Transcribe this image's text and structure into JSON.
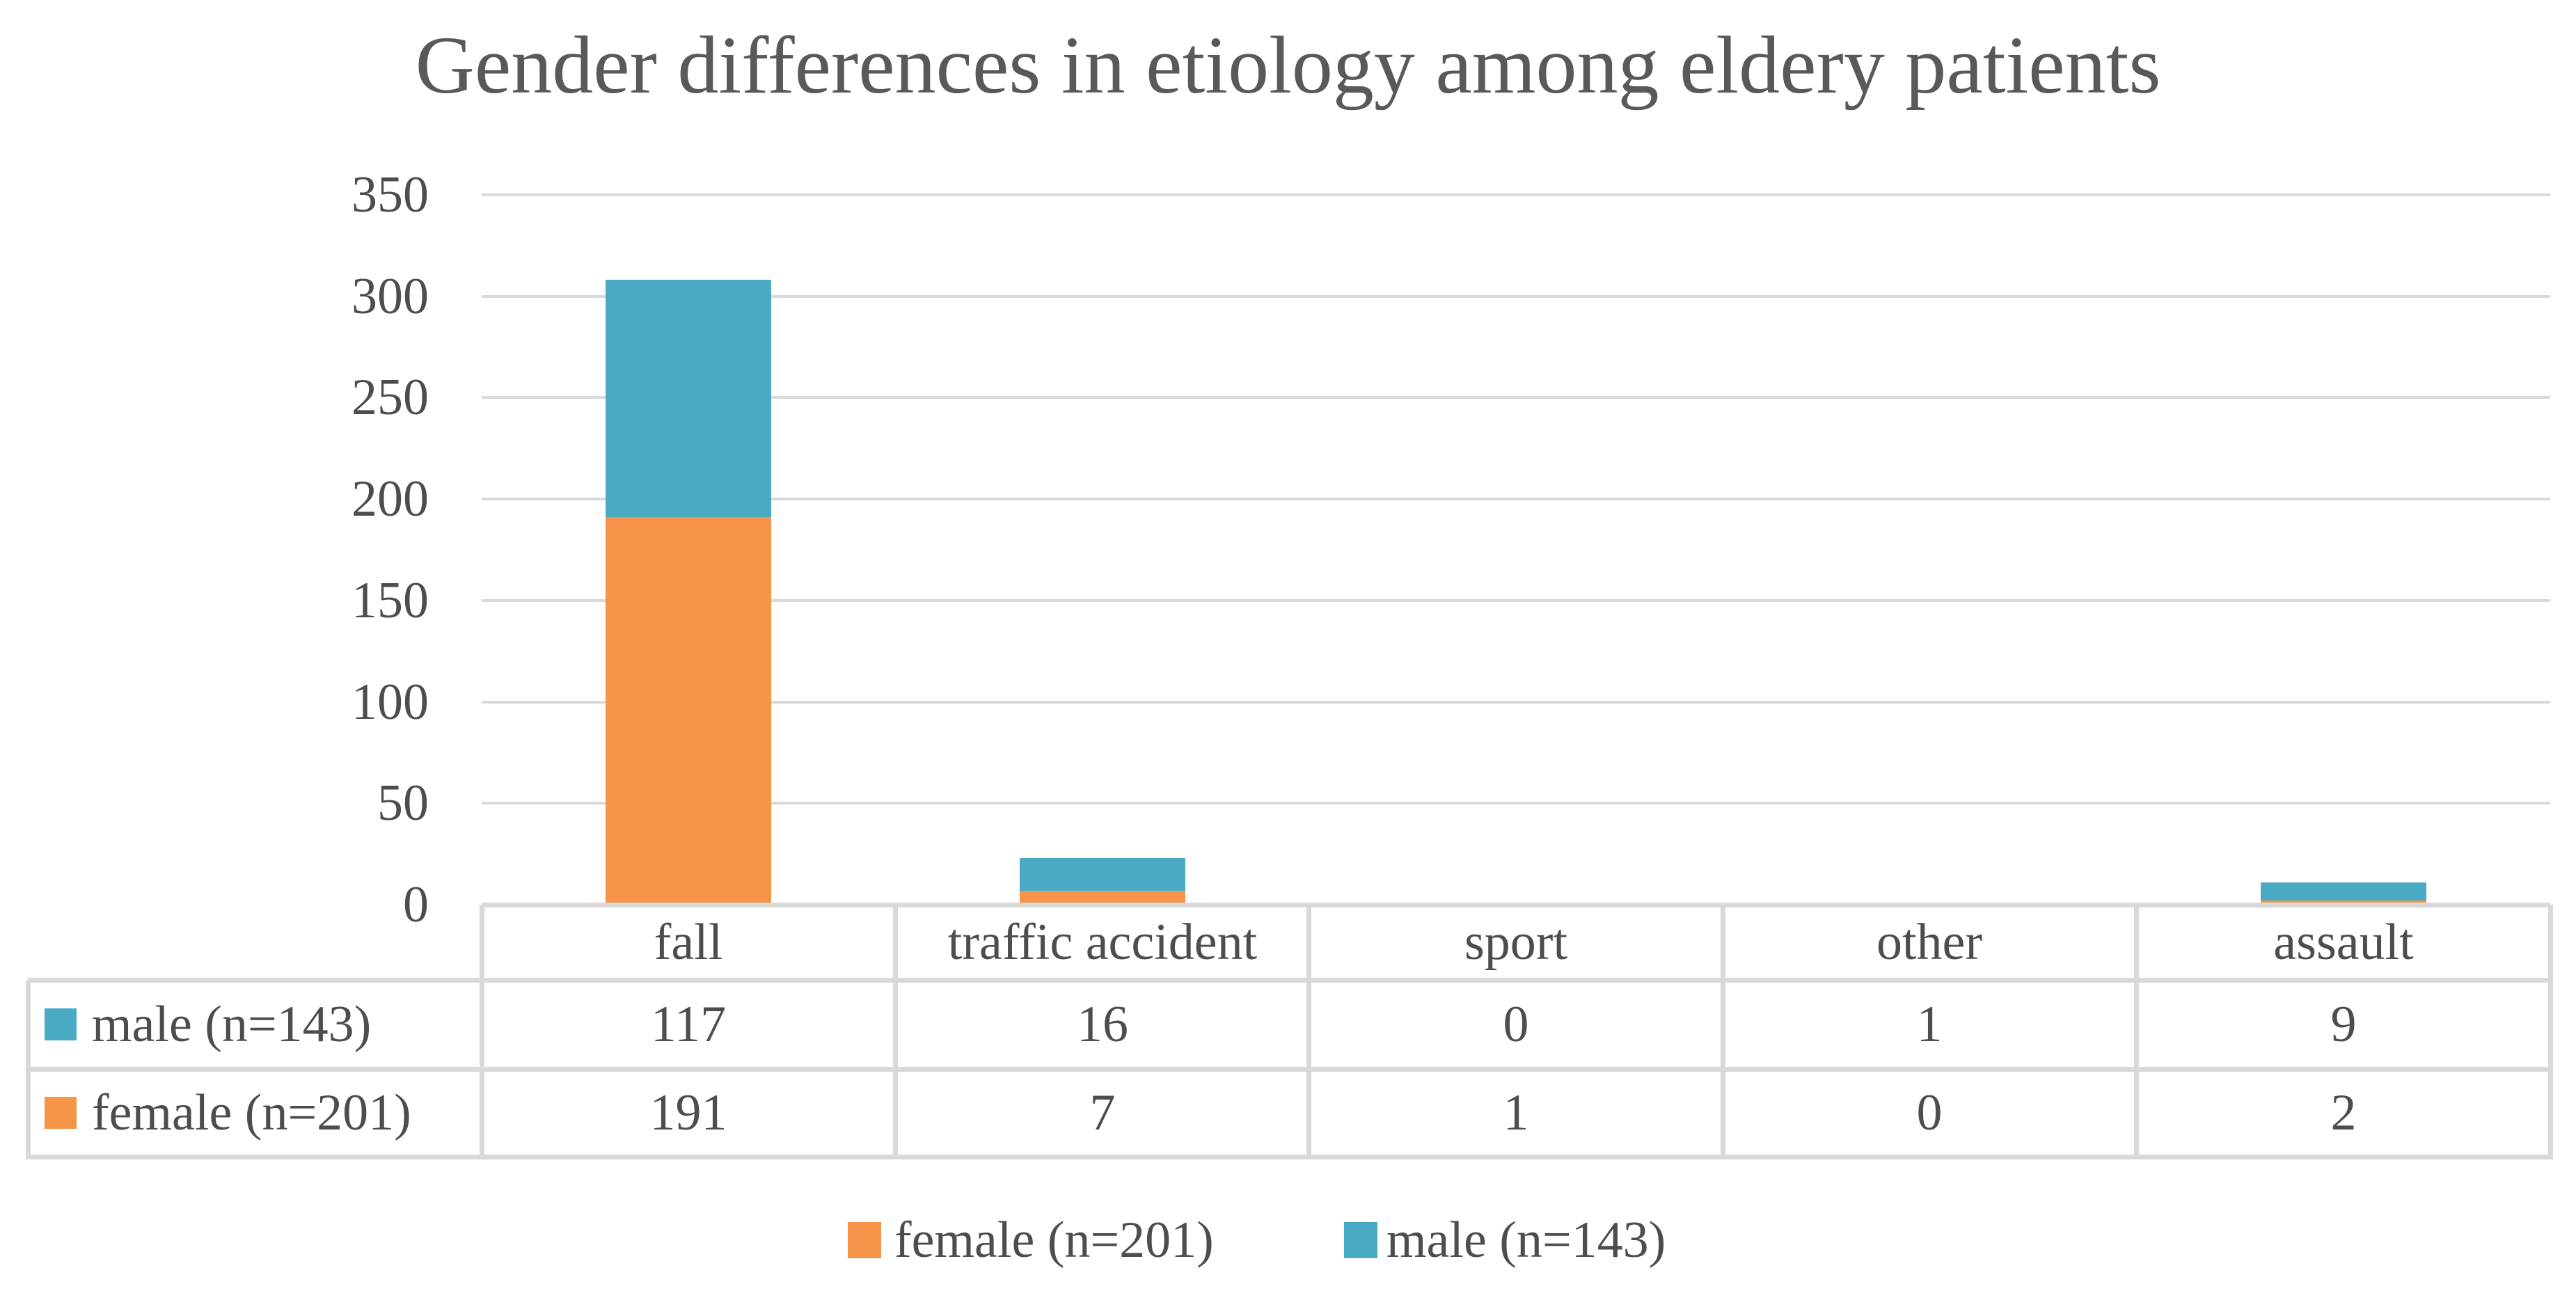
{
  "title": "Gender differences in etiology among eldery patients",
  "colors": {
    "male": "#4AAAC4",
    "female": "#F6954A",
    "title_text": "#595959",
    "text": "#4D4D4D",
    "gridline": "#D9D9D9",
    "table_border": "#D9D9D9",
    "background": "#FFFFFF"
  },
  "chart_data": {
    "type": "bar",
    "stacked": true,
    "title": "Gender differences in etiology among eldery patients",
    "xlabel": "",
    "ylabel": "",
    "categories": [
      "fall",
      "traffic accident",
      "sport",
      "other",
      "assault"
    ],
    "series": [
      {
        "name": "female (n=201)",
        "color_key": "female",
        "values": [
          191,
          7,
          1,
          0,
          2
        ]
      },
      {
        "name": "male (n=143)",
        "color_key": "male",
        "values": [
          117,
          16,
          0,
          1,
          9
        ]
      }
    ],
    "stack_order_bottom_to_top": [
      "female (n=201)",
      "male (n=143)"
    ],
    "y_axis": {
      "min": 0,
      "max": 350,
      "step": 50,
      "tick_labels": [
        "350",
        "300",
        "250",
        "200",
        "150",
        "100",
        "50",
        "0"
      ]
    },
    "grid": "horizontal",
    "data_table": {
      "column_headers": [
        "fall",
        "traffic accident",
        "sport",
        "other",
        "assault"
      ],
      "rows": [
        {
          "label": "male (n=143)",
          "swatch": "male",
          "values": [
            "117",
            "16",
            "0",
            "1",
            "9"
          ]
        },
        {
          "label": "female (n=201)",
          "swatch": "female",
          "values": [
            "191",
            "7",
            "1",
            "0",
            "2"
          ]
        }
      ]
    },
    "legend_position": "bottom",
    "legend": [
      {
        "label": "female (n=201)",
        "swatch": "female"
      },
      {
        "label": "male (n=143)",
        "swatch": "male"
      }
    ]
  }
}
